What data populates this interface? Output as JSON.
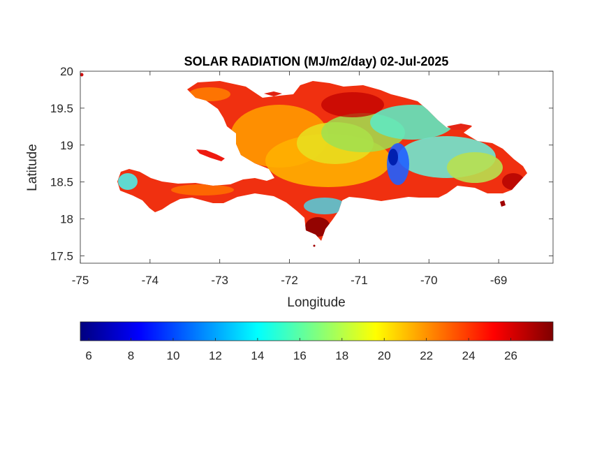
{
  "figure": {
    "title": "SOLAR RADIATION (MJ/m2/day) 02-Jul-2025",
    "xlabel": "Longitude",
    "ylabel": "Latitude"
  },
  "chart_data": {
    "type": "heatmap",
    "title": "SOLAR RADIATION (MJ/m2/day) 02-Jul-2025",
    "xlabel": "Longitude",
    "ylabel": "Latitude",
    "xlim": [
      -75,
      -68.22
    ],
    "ylim": [
      17.4,
      20
    ],
    "xticks": [
      -75,
      -74,
      -73,
      -72,
      -71,
      -70,
      -69
    ],
    "xtick_labels": [
      "-75",
      "-74",
      "-73",
      "-72",
      "-71",
      "-70",
      "-69"
    ],
    "yticks": [
      17.5,
      18,
      18.5,
      19,
      19.5,
      20
    ],
    "ytick_labels": [
      "17.5",
      "18",
      "18.5",
      "19",
      "19.5",
      "20"
    ],
    "grid": false,
    "colormap": "jet",
    "clim": [
      5.6,
      28
    ],
    "colorbar": {
      "orientation": "horizontal",
      "location": "below",
      "ticks": [
        6,
        8,
        10,
        12,
        14,
        16,
        18,
        20,
        22,
        24,
        26
      ],
      "tick_labels": [
        "6",
        "8",
        "10",
        "12",
        "14",
        "16",
        "18",
        "20",
        "22",
        "24",
        "26"
      ]
    },
    "colors": {
      "min": "#00007f",
      "low": "#0000ff",
      "mid_low": "#00ffff",
      "mid": "#ffff00",
      "high": "#ff0000",
      "max": "#7f0000"
    }
  }
}
